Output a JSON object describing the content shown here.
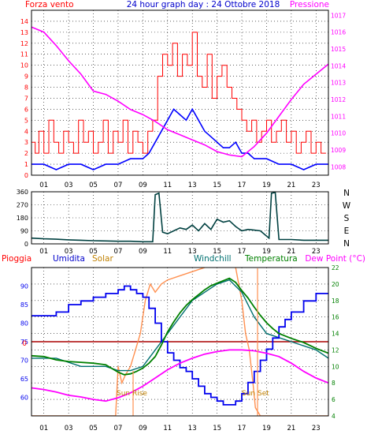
{
  "header": {
    "wind_label": "Forza vento",
    "title": "24 hour graph day : 24 Ottobre 2018",
    "pressure_label": "Pressione"
  },
  "middle": {
    "compass_labels": [
      "N",
      "W",
      "S",
      "E",
      "N"
    ]
  },
  "bottom_header": {
    "rain_label": "Pioggia",
    "humidity_label": "Umidita",
    "solar_label": "Solar",
    "windchill_label": "Windchill",
    "temperature_label": "Temperatura",
    "dewpoint_label": "Dew Point (°C)"
  },
  "colors": {
    "wind": "#ff0000",
    "gust": "#0000ff",
    "pressure": "#ff00ff",
    "direction": "#004040",
    "humidity": "#0000ee",
    "solar": "#ff9050",
    "windchill": "#007070",
    "temperature": "#008000",
    "dewpoint": "#ff00ff",
    "rain": "#aa0000",
    "axis_left": "#ff0000",
    "axis_right": "#ff00ff",
    "axis_humidity": "#0000ee",
    "axis_temp": "#008000"
  },
  "chart_data": [
    {
      "type": "line",
      "name": "wind-pressure",
      "title": "24 hour graph day : 24 Ottobre 2018",
      "x_tick_labels": [
        "01",
        "03",
        "05",
        "07",
        "09",
        "11",
        "13",
        "15",
        "17",
        "19",
        "21",
        "23"
      ],
      "xlim": [
        0,
        24
      ],
      "ylim_left": [
        0,
        15
      ],
      "ylim_right": [
        1007.5,
        1017.3
      ],
      "y_left_ticks": [
        0,
        1,
        2,
        3,
        4,
        5,
        6,
        7,
        8,
        9,
        10,
        11,
        12,
        13,
        14
      ],
      "y_right_ticks": [
        1008,
        1009,
        1010,
        1011,
        1012,
        1013,
        1014,
        1015,
        1016,
        1017
      ],
      "grid": true,
      "series": [
        {
          "name": "Forza vento",
          "hours": [
            0,
            0.3,
            0.6,
            1.0,
            1.4,
            1.8,
            2.2,
            2.6,
            3.0,
            3.4,
            3.8,
            4.2,
            4.6,
            5.0,
            5.4,
            5.8,
            6.2,
            6.6,
            7.0,
            7.4,
            7.8,
            8.2,
            8.6,
            9.0,
            9.4,
            9.8,
            10.2,
            10.6,
            11.0,
            11.4,
            11.8,
            12.2,
            12.6,
            13.0,
            13.4,
            13.8,
            14.2,
            14.6,
            15.0,
            15.4,
            15.8,
            16.2,
            16.6,
            17.0,
            17.4,
            17.8,
            18.2,
            18.6,
            19.0,
            19.4,
            19.8,
            20.2,
            20.6,
            21.0,
            21.4,
            21.8,
            22.2,
            22.6,
            23.0,
            23.4,
            23.8
          ],
          "values": [
            3,
            2,
            4,
            2,
            5,
            3,
            2,
            4,
            3,
            2,
            5,
            3,
            4,
            2,
            3,
            5,
            2,
            4,
            3,
            5,
            2,
            4,
            3,
            2,
            4,
            5,
            9,
            11,
            10,
            12,
            9,
            11,
            10,
            13,
            9,
            8,
            11,
            7,
            9,
            10,
            8,
            7,
            6,
            5,
            4,
            5,
            3,
            4,
            5,
            3,
            4,
            5,
            3,
            4,
            2,
            3,
            4,
            2,
            3,
            2,
            2
          ]
        },
        {
          "name": "Raffica",
          "hours": [
            0,
            1,
            2,
            3,
            4,
            5,
            6,
            7,
            8,
            9,
            9.5,
            10,
            10.5,
            11,
            11.5,
            12,
            12.5,
            13,
            13.5,
            14,
            14.5,
            15,
            15.5,
            16,
            16.5,
            17,
            17.5,
            18,
            19,
            20,
            21,
            22,
            23,
            24
          ],
          "values": [
            1,
            1,
            0.5,
            1,
            1,
            0.5,
            1,
            1,
            1.5,
            1.5,
            2,
            3,
            4,
            5,
            6,
            5.5,
            5,
            6,
            5,
            4,
            3.5,
            3,
            2.5,
            2.5,
            3,
            2,
            2,
            1.5,
            1.5,
            1,
            1,
            0.5,
            1,
            1
          ]
        },
        {
          "name": "Pressione",
          "hours": [
            0,
            1,
            2,
            3,
            4,
            5,
            6,
            7,
            8,
            9,
            10,
            11,
            12,
            13,
            14,
            15,
            16,
            17,
            18,
            19,
            20,
            21,
            22,
            23,
            24
          ],
          "values": [
            1016.3,
            1016.0,
            1015.2,
            1014.3,
            1013.5,
            1012.5,
            1012.3,
            1011.9,
            1011.4,
            1011.1,
            1010.7,
            1010.2,
            1009.9,
            1009.6,
            1009.3,
            1008.9,
            1008.7,
            1008.6,
            1009.2,
            1010.0,
            1011.0,
            1012.0,
            1012.9,
            1013.5,
            1014.1
          ]
        }
      ]
    },
    {
      "type": "line",
      "name": "wind-direction",
      "x_tick_labels": [
        "01",
        "03",
        "05",
        "07",
        "09",
        "11",
        "13",
        "15",
        "17",
        "19",
        "21",
        "23"
      ],
      "xlim": [
        0,
        24
      ],
      "ylim": [
        0,
        360
      ],
      "y_ticks": [
        0,
        90,
        180,
        270,
        360
      ],
      "series": [
        {
          "name": "Direzione",
          "hours": [
            0,
            1,
            2,
            3,
            4,
            5,
            6,
            7,
            8,
            9,
            9.8,
            10.0,
            10.3,
            10.6,
            11.0,
            11.5,
            12.0,
            12.5,
            13.0,
            13.5,
            14.0,
            14.5,
            15.0,
            15.5,
            16.0,
            16.5,
            17.0,
            17.5,
            18.0,
            18.5,
            19.2,
            19.4,
            19.7,
            20.0,
            21,
            22,
            23,
            24
          ],
          "values": [
            40,
            35,
            32,
            28,
            25,
            22,
            20,
            18,
            18,
            15,
            15,
            340,
            350,
            80,
            70,
            90,
            110,
            100,
            130,
            90,
            140,
            100,
            170,
            150,
            160,
            120,
            90,
            100,
            95,
            90,
            40,
            350,
            355,
            30,
            30,
            25,
            25,
            25
          ]
        }
      ]
    },
    {
      "type": "line",
      "name": "temperature-humidity",
      "x_tick_labels": [
        "01",
        "03",
        "05",
        "07",
        "09",
        "11",
        "13",
        "15",
        "17",
        "19",
        "21",
        "23"
      ],
      "xlim": [
        0,
        24
      ],
      "ylim_humidity": [
        55,
        95
      ],
      "ylim_temperature": [
        4,
        22
      ],
      "y_humidity_ticks": [
        60,
        65,
        70,
        75,
        80,
        85,
        90
      ],
      "y_temperature_ticks": [
        4,
        6,
        8,
        10,
        12,
        14,
        16,
        18,
        20,
        22
      ],
      "rain_value": 0,
      "annotations": [
        "Sun Rise",
        "Sun Set"
      ],
      "series": [
        {
          "name": "Umidita",
          "hours": [
            0,
            1,
            2,
            3,
            4,
            5,
            6,
            7,
            7.5,
            8,
            8.5,
            9,
            9.5,
            10,
            10.5,
            11,
            11.5,
            12,
            12.5,
            13,
            13.5,
            14,
            14.5,
            15,
            15.5,
            16,
            16.5,
            17,
            17.5,
            18,
            18.5,
            19,
            19.5,
            20,
            20.5,
            21,
            22,
            23,
            24
          ],
          "values": [
            82,
            82,
            83,
            85,
            86,
            87,
            88,
            89,
            90,
            89,
            88,
            87,
            84,
            80,
            75,
            72,
            70,
            68,
            67,
            65,
            63,
            61,
            60,
            59,
            58,
            58,
            59,
            61,
            64,
            67,
            70,
            73,
            76,
            79,
            81,
            83,
            86,
            88,
            88
          ]
        },
        {
          "name": "Solar",
          "hours": [
            0,
            6.8,
            7.0,
            7.3,
            7.6,
            8.0,
            8.4,
            8.8,
            9.2,
            9.6,
            10.0,
            10.5,
            11,
            12,
            13,
            14,
            15,
            16,
            16.5,
            17,
            17.3,
            17.6,
            17.9,
            18.1,
            18.5,
            24
          ],
          "values": [
            4,
            4,
            10,
            8,
            9,
            10,
            12,
            14,
            18,
            20,
            19,
            20,
            20.5,
            21,
            21.5,
            22,
            22.5,
            23,
            22,
            18,
            14,
            12,
            8,
            5,
            4,
            4
          ]
        },
        {
          "name": "Windchill",
          "hours": [
            0,
            2,
            4,
            6,
            7,
            8,
            9,
            9.5,
            10,
            11,
            12,
            13,
            14,
            15,
            16,
            17,
            18,
            19,
            20,
            21,
            22,
            23,
            24
          ],
          "values": [
            11,
            11,
            10,
            10,
            9.5,
            9.5,
            10,
            11,
            12,
            14,
            16,
            18,
            19,
            20,
            20.5,
            19,
            16,
            14,
            13.5,
            13,
            12.5,
            12,
            11
          ]
        },
        {
          "name": "Temperatura",
          "hours": [
            0,
            1,
            2,
            3,
            4,
            5,
            6,
            7,
            7.5,
            8,
            8.5,
            9,
            9.5,
            10,
            10.5,
            11,
            11.5,
            12,
            12.5,
            13,
            13.5,
            14,
            14.5,
            15,
            15.5,
            16,
            16.5,
            17,
            17.5,
            18,
            18.5,
            19,
            19.5,
            20,
            21,
            22,
            23,
            24
          ],
          "values": [
            11.3,
            11.2,
            10.8,
            10.6,
            10.5,
            10.4,
            10.2,
            9.3,
            9.0,
            9.1,
            9.4,
            9.8,
            10.4,
            11.2,
            12.6,
            14.2,
            15.4,
            16.5,
            17.4,
            18.1,
            18.7,
            19.3,
            19.8,
            20.1,
            20.4,
            20.7,
            20.2,
            19.2,
            18.3,
            17.2,
            16.2,
            15.3,
            14.6,
            14.0,
            13.4,
            12.9,
            12.2,
            11.6
          ]
        },
        {
          "name": "Dew Point",
          "hours": [
            0,
            1,
            2,
            3,
            4,
            5,
            6,
            7,
            8,
            9,
            10,
            11,
            12,
            13,
            14,
            15,
            16,
            17,
            18,
            19,
            20,
            21,
            22,
            23,
            24
          ],
          "values": [
            7.4,
            7.2,
            6.9,
            6.5,
            6.3,
            6.0,
            5.8,
            6.2,
            6.8,
            7.6,
            8.6,
            9.6,
            10.4,
            11.0,
            11.5,
            11.8,
            12.0,
            12.0,
            11.9,
            11.6,
            11.2,
            10.4,
            9.4,
            8.6,
            8.0
          ]
        }
      ]
    }
  ]
}
